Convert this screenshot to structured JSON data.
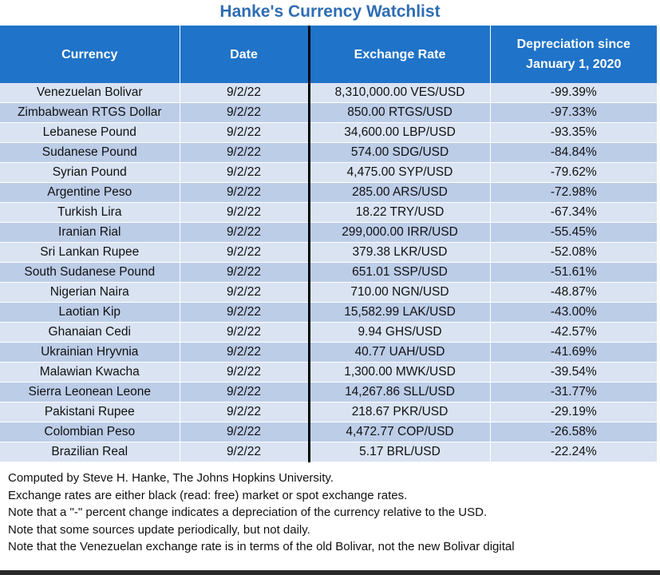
{
  "title": "Hanke's Currency Watchlist",
  "columns": {
    "currency": "Currency",
    "date": "Date",
    "rate": "Exchange Rate",
    "depreciation_line1": "Depreciation since",
    "depreciation_line2": "January 1, 2020"
  },
  "rows": [
    {
      "currency": "Venezuelan Bolivar",
      "date": "9/2/22",
      "rate": "8,310,000.00 VES/USD",
      "depreciation": "-99.39%"
    },
    {
      "currency": "Zimbabwean RTGS Dollar",
      "date": "9/2/22",
      "rate": "850.00 RTGS/USD",
      "depreciation": "-97.33%"
    },
    {
      "currency": "Lebanese Pound",
      "date": "9/2/22",
      "rate": "34,600.00 LBP/USD",
      "depreciation": "-93.35%"
    },
    {
      "currency": "Sudanese Pound",
      "date": "9/2/22",
      "rate": "574.00 SDG/USD",
      "depreciation": "-84.84%"
    },
    {
      "currency": "Syrian Pound",
      "date": "9/2/22",
      "rate": "4,475.00 SYP/USD",
      "depreciation": "-79.62%"
    },
    {
      "currency": "Argentine Peso",
      "date": "9/2/22",
      "rate": "285.00 ARS/USD",
      "depreciation": "-72.98%"
    },
    {
      "currency": "Turkish Lira",
      "date": "9/2/22",
      "rate": "18.22 TRY/USD",
      "depreciation": "-67.34%"
    },
    {
      "currency": "Iranian Rial",
      "date": "9/2/22",
      "rate": "299,000.00 IRR/USD",
      "depreciation": "-55.45%"
    },
    {
      "currency": "Sri Lankan Rupee",
      "date": "9/2/22",
      "rate": "379.38 LKR/USD",
      "depreciation": "-52.08%"
    },
    {
      "currency": "South Sudanese Pound",
      "date": "9/2/22",
      "rate": "651.01 SSP/USD",
      "depreciation": "-51.61%"
    },
    {
      "currency": "Nigerian Naira",
      "date": "9/2/22",
      "rate": "710.00 NGN/USD",
      "depreciation": "-48.87%"
    },
    {
      "currency": "Laotian Kip",
      "date": "9/2/22",
      "rate": "15,582.99 LAK/USD",
      "depreciation": "-43.00%"
    },
    {
      "currency": "Ghanaian Cedi",
      "date": "9/2/22",
      "rate": "9.94 GHS/USD",
      "depreciation": "-42.57%"
    },
    {
      "currency": "Ukrainian Hryvnia",
      "date": "9/2/22",
      "rate": "40.77 UAH/USD",
      "depreciation": "-41.69%"
    },
    {
      "currency": "Malawian Kwacha",
      "date": "9/2/22",
      "rate": "1,300.00 MWK/USD",
      "depreciation": "-39.54%"
    },
    {
      "currency": "Sierra Leonean Leone",
      "date": "9/2/22",
      "rate": "14,267.86 SLL/USD",
      "depreciation": "-31.77%"
    },
    {
      "currency": "Pakistani Rupee",
      "date": "9/2/22",
      "rate": "218.67 PKR/USD",
      "depreciation": "-29.19%"
    },
    {
      "currency": "Colombian Peso",
      "date": "9/2/22",
      "rate": "4,472.77 COP/USD",
      "depreciation": "-26.58%"
    },
    {
      "currency": "Brazilian Real",
      "date": "9/2/22",
      "rate": "5.17 BRL/USD",
      "depreciation": "-22.24%"
    }
  ],
  "notes": [
    "Computed by Steve H. Hanke, The Johns Hopkins University.",
    "Exchange rates are either black (read: free) market or spot exchange rates.",
    "Note that a \"-\" percent change indicates a depreciation of the currency relative to the USD.",
    "Note that some sources update periodically, but not daily.",
    "Note that the Venezuelan exchange rate is in terms of the old Bolivar, not the new Bolivar digital"
  ],
  "colors": {
    "title": "#2e6db4",
    "header_bg": "#1f73c8",
    "row_light": "#d9e3f2",
    "row_dark": "#bccde8"
  }
}
